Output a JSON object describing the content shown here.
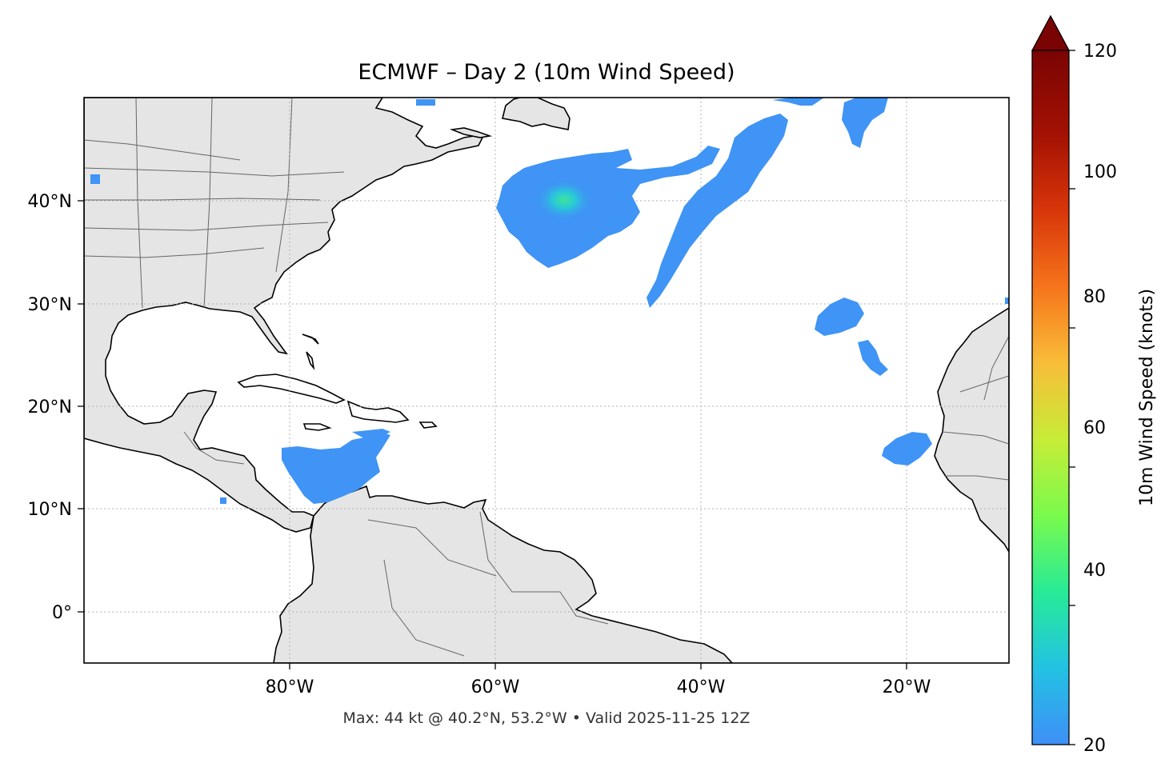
{
  "title": "ECMWF – Day 2 (10m Wind Speed)",
  "footer": "Max: 44 kt @ 40.2°N, 53.2°W • Valid 2025-11-25 12Z",
  "map": {
    "lon_range": [
      -100,
      -10
    ],
    "lat_range": [
      -5,
      50
    ],
    "x_ticks": [
      "80°W",
      "60°W",
      "40°W",
      "20°W"
    ],
    "y_ticks": [
      "0°",
      "10°N",
      "20°N",
      "30°N",
      "40°N"
    ],
    "gridlines": true,
    "land_color": "#e5e5e5",
    "coast_color": "#000000",
    "border_color": "#666666",
    "grid_color": "#b0b0b0"
  },
  "colorbar": {
    "label": "10m Wind Speed (knots)",
    "ticks": [
      "20",
      "40",
      "60",
      "80",
      "100",
      "120"
    ],
    "range": [
      20,
      120
    ],
    "extend": "max",
    "colors": [
      "#3f8ff7",
      "#22c2e3",
      "#27eb96",
      "#7afa4c",
      "#c7ec37",
      "#f8bd38",
      "#f6741b",
      "#d8350a",
      "#a31103",
      "#7a0403"
    ]
  },
  "wind_areas": [
    {
      "name": "north-atlantic-low",
      "peak_kt": 44,
      "lat": 40.2,
      "lon": -53.2
    },
    {
      "name": "mid-atlantic-band",
      "peak_kt": 27
    },
    {
      "name": "north-atlantic-upper",
      "peak_kt": 25
    },
    {
      "name": "caribbean-trades",
      "peak_kt": 26
    },
    {
      "name": "azores-area",
      "peak_kt": 22
    },
    {
      "name": "cape-verde-area",
      "peak_kt": 22
    }
  ]
}
